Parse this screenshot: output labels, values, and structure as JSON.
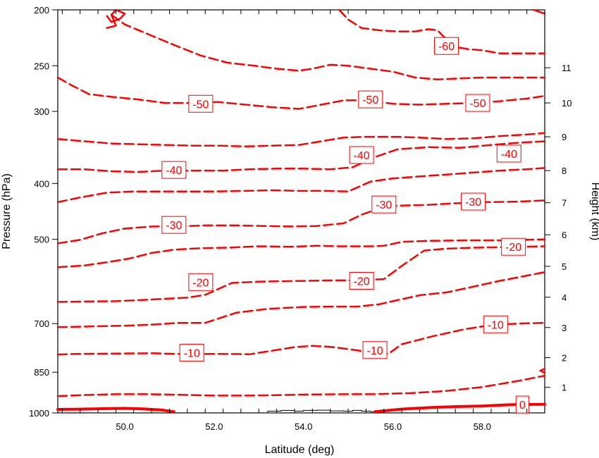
{
  "chart_data": {
    "type": "line",
    "subtype": "contour",
    "title": "",
    "xlabel": "Latitude (deg)",
    "ylabel_left": "Pressure (hPa)",
    "ylabel_right": "Height (km)",
    "xlim": [
      48.5,
      59.4
    ],
    "ylim": [
      1000,
      200
    ],
    "y_scale": "log",
    "grid": false,
    "legend": "none",
    "x_ticks": [
      "50.0",
      "52.0",
      "54.0",
      "56.0",
      "58.0"
    ],
    "x_tick_values": [
      50,
      52,
      54,
      56,
      58
    ],
    "y_ticks": [
      "200",
      "250",
      "300",
      "400",
      "500",
      "700",
      "850",
      "1000"
    ],
    "y_tick_values": [
      200,
      250,
      300,
      400,
      500,
      700,
      850,
      1000
    ],
    "y2_ticks": [
      "1",
      "2",
      "3",
      "4",
      "5",
      "6",
      "7",
      "8",
      "9",
      "10",
      "11"
    ],
    "y2_tick_pressures": [
      903,
      802,
      711,
      630,
      557,
      491,
      432,
      380,
      332,
      290,
      252
    ],
    "contour_color": "#ff0000",
    "series": [
      {
        "level": "0",
        "style": "solid",
        "x": [
          48.5,
          49.0,
          49.6,
          50.0,
          50.4,
          50.8,
          51.1
        ],
        "y": [
          986,
          985,
          983,
          982,
          984,
          988,
          995
        ]
      },
      {
        "level": "0",
        "style": "solid",
        "x": [
          55.6,
          56.2,
          56.8,
          57.4,
          58.0,
          58.6,
          59.4
        ],
        "y": [
          995,
          985,
          979,
          975,
          973,
          968,
          966
        ]
      },
      {
        "level": "-10",
        "style": "dashed",
        "x": [
          48.5,
          49.1,
          49.8,
          50.5,
          51.2,
          52.0,
          52.8,
          53.5,
          54.2,
          55.0,
          55.6,
          56.4,
          57.2,
          58.0,
          58.8,
          59.4
        ],
        "y": [
          935,
          931,
          928,
          928,
          930,
          933,
          933,
          931,
          929,
          928,
          928,
          924,
          916,
          902,
          880,
          862
        ]
      },
      {
        "level": "-10",
        "style": "dashed",
        "x": [
          48.5,
          49.0,
          49.8,
          50.6,
          51.4,
          52.1,
          52.8,
          53.3,
          53.8,
          54.2,
          54.6,
          55.0,
          55.5,
          55.9,
          56.2,
          56.9,
          57.6,
          58.2,
          58.8,
          59.4
        ],
        "y": [
          792,
          790,
          789,
          788,
          791,
          790,
          791,
          780,
          769,
          765,
          768,
          775,
          785,
          790,
          760,
          736,
          716,
          704,
          700,
          698
        ]
      },
      {
        "level": "-20",
        "style": "dashed",
        "x": [
          48.5,
          49.2,
          50.0,
          50.6,
          51.2,
          51.8,
          52.5,
          53.2,
          54.0,
          54.6,
          55.2,
          55.7,
          56.0,
          56.6,
          57.2,
          57.8,
          58.4,
          59.4
        ],
        "y": [
          710,
          708,
          706,
          703,
          698,
          698,
          670,
          660,
          655,
          654,
          654,
          648,
          640,
          625,
          618,
          604,
          590,
          570
        ]
      },
      {
        "level": "-20",
        "style": "dashed",
        "x": [
          48.5,
          49.1,
          49.8,
          50.4,
          50.9,
          51.4,
          51.8,
          52.4,
          53.0,
          53.5,
          54.1,
          54.6,
          55.2,
          55.8,
          56.2,
          56.7,
          57.2,
          57.8,
          58.5,
          59.4
        ],
        "y": [
          642,
          641,
          640,
          637,
          634,
          631,
          624,
          595,
          592,
          591,
          590,
          589,
          589,
          586,
          556,
          523,
          519,
          517,
          516,
          514
        ]
      },
      {
        "level": "-30",
        "style": "dashed",
        "x": [
          48.5,
          49.1,
          49.6,
          50.1,
          50.6,
          51.1,
          51.7,
          52.3,
          53.0,
          53.7,
          54.3,
          54.8,
          55.2,
          55.6,
          55.8,
          56.2,
          56.8,
          57.6,
          58.4,
          59.4
        ],
        "y": [
          559,
          555,
          548,
          540,
          528,
          521,
          518,
          517,
          514,
          515,
          513,
          514,
          514,
          514,
          513,
          505,
          503,
          502,
          502,
          500
        ]
      },
      {
        "level": "-30",
        "style": "dashed",
        "x": [
          48.5,
          49.0,
          49.5,
          50.0,
          50.6,
          51.2,
          51.8,
          52.5,
          53.1,
          53.7,
          54.3,
          54.9,
          55.3,
          55.7,
          56.1,
          56.7,
          57.4,
          58.1,
          58.8,
          59.4
        ],
        "y": [
          508,
          501,
          488,
          479,
          475,
          475,
          473,
          473,
          474,
          475,
          474,
          469,
          453,
          442,
          437,
          436,
          433,
          431,
          430,
          428
        ]
      },
      {
        "level": "-40",
        "style": "dashed",
        "x": [
          48.5,
          49.0,
          49.6,
          50.2,
          50.8,
          51.4,
          52.0,
          52.7,
          53.3,
          53.9,
          54.5,
          55.0,
          55.5,
          56.0,
          56.6,
          57.2,
          57.8,
          58.4,
          59.0,
          59.4
        ],
        "y": [
          431,
          423,
          415,
          413,
          413,
          413,
          413,
          412,
          411,
          412,
          412,
          413,
          397,
          392,
          389,
          386,
          383,
          380,
          378,
          376
        ]
      },
      {
        "level": "-40",
        "style": "dashed",
        "x": [
          48.5,
          49.1,
          49.7,
          50.3,
          50.9,
          51.5,
          52.2,
          52.8,
          53.4,
          54.0,
          54.6,
          55.1,
          55.6,
          56.1,
          56.8,
          57.5,
          58.2,
          58.8,
          59.4
        ],
        "y": [
          378,
          378,
          381,
          382,
          380,
          380,
          380,
          378,
          377,
          377,
          378,
          375,
          360,
          349,
          346,
          347,
          343,
          340,
          338
        ]
      },
      {
        "level": "-50",
        "style": "dashed",
        "x": [
          48.5,
          49.1,
          49.7,
          50.3,
          50.9,
          51.5,
          52.1,
          52.7,
          53.3,
          53.9,
          54.4,
          54.9,
          55.4,
          56.0,
          56.6,
          57.2,
          57.8,
          58.4,
          59.0,
          59.4
        ],
        "y": [
          335,
          338,
          341,
          342,
          343,
          344,
          344,
          345,
          344,
          343,
          338,
          333,
          332,
          332,
          333,
          335,
          334,
          331,
          329,
          327
        ]
      },
      {
        "level": "-50",
        "style": "dashed",
        "x": [
          48.5,
          48.8,
          49.2,
          49.7,
          50.3,
          50.9,
          51.5,
          52.1,
          52.7,
          53.3,
          53.9,
          54.4,
          54.9,
          55.4,
          56.0,
          56.6,
          57.2,
          57.8,
          58.4,
          59.0,
          59.4
        ],
        "y": [
          262,
          270,
          280,
          283,
          286,
          290,
          290,
          289,
          292,
          295,
          297,
          292,
          287,
          287,
          291,
          292,
          291,
          290,
          288,
          285,
          282
        ]
      },
      {
        "level": "-60",
        "style": "dashed",
        "x": [
          49.7,
          50.0,
          50.5,
          51.1,
          51.7,
          52.3,
          52.9,
          53.4,
          53.9,
          54.2,
          54.6,
          55.0,
          55.5,
          56.0,
          56.5,
          57.0,
          57.5,
          58.0,
          58.5,
          59.0,
          59.4
        ],
        "y": [
          204,
          212,
          220,
          230,
          240,
          247,
          250,
          253,
          255,
          253,
          249,
          250,
          253,
          256,
          262,
          264,
          263,
          262,
          262,
          262,
          262
        ]
      },
      {
        "level": "-60",
        "style": "dashed",
        "x": [
          54.8,
          55.0,
          55.3,
          55.7,
          56.1,
          56.5,
          56.8,
          57.0,
          57.2,
          57.4,
          57.7,
          58.0,
          58.4,
          58.8,
          59.4
        ],
        "y": [
          200,
          208,
          215,
          217,
          218,
          218,
          216,
          217,
          225,
          232,
          234,
          235,
          238,
          238,
          238
        ]
      },
      {
        "level": "-60",
        "style": "solid",
        "x": [
          49.6,
          49.7,
          49.9,
          50.0,
          49.8,
          49.7,
          49.8,
          49.6
        ],
        "y": [
          205,
          210,
          207,
          203,
          200,
          204,
          213,
          215
        ]
      },
      {
        "level": "-60",
        "style": "solid",
        "x": [
          59.15,
          59.4
        ],
        "y": [
          200,
          203
        ]
      },
      {
        "level": "-10",
        "style": "solid",
        "x": [
          59.4,
          59.3,
          59.4
        ],
        "y": [
          838,
          845,
          852
        ]
      }
    ],
    "contour_labels": [
      {
        "text": "-60",
        "x": 57.2,
        "y": 231
      },
      {
        "text": "-50",
        "x": 51.7,
        "y": 291
      },
      {
        "text": "-50",
        "x": 55.5,
        "y": 286
      },
      {
        "text": "-50",
        "x": 57.9,
        "y": 290
      },
      {
        "text": "-40",
        "x": 55.3,
        "y": 357
      },
      {
        "text": "-40",
        "x": 58.6,
        "y": 355
      },
      {
        "text": "-40",
        "x": 51.1,
        "y": 379
      },
      {
        "text": "-30",
        "x": 55.8,
        "y": 435
      },
      {
        "text": "-30",
        "x": 57.8,
        "y": 430
      },
      {
        "text": "-30",
        "x": 51.1,
        "y": 472
      },
      {
        "text": "-20",
        "x": 58.7,
        "y": 515
      },
      {
        "text": "-20",
        "x": 51.7,
        "y": 593
      },
      {
        "text": "-20",
        "x": 55.3,
        "y": 590
      },
      {
        "text": "-10",
        "x": 58.3,
        "y": 702
      },
      {
        "text": "-10",
        "x": 51.5,
        "y": 786
      },
      {
        "text": "-10",
        "x": 55.6,
        "y": 778
      },
      {
        "text": "0",
        "x": 58.9,
        "y": 967
      }
    ],
    "terrain": {
      "x": [
        52.0,
        53.0,
        53.2,
        53.5,
        53.8,
        54.0,
        54.3,
        54.6,
        54.9,
        55.1,
        55.3,
        55.5,
        55.6,
        56.0
      ],
      "y": [
        1000,
        1000,
        993,
        990,
        993,
        990,
        989,
        992,
        993,
        990,
        993,
        995,
        1000,
        1000
      ]
    }
  }
}
